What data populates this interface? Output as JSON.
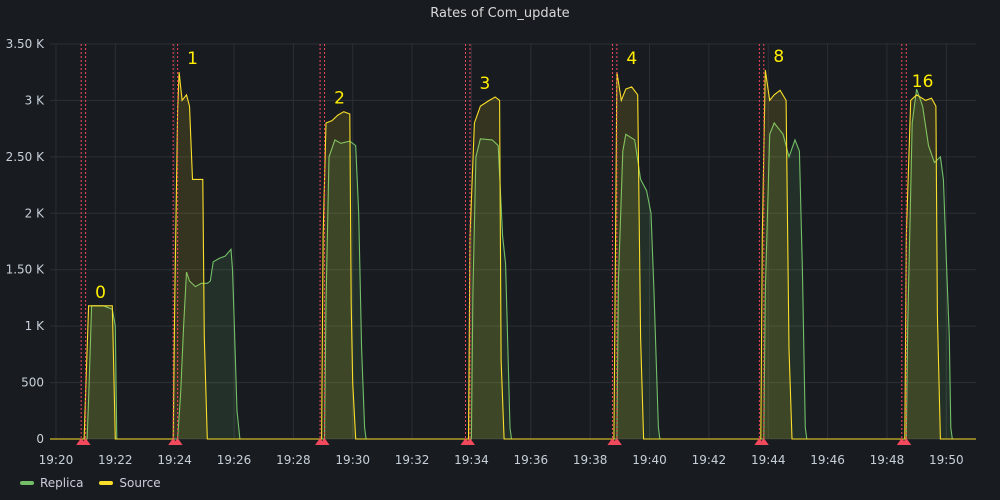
{
  "panel": {
    "title": "Rates of Com_update"
  },
  "colors": {
    "background": "#181b1f",
    "grid": "#2c3035",
    "annotation": "#f2495c",
    "replica": "#73bf69",
    "source": "#fade2a",
    "label": "#ffee00"
  },
  "chart_data": {
    "type": "area",
    "title": "Rates of Com_update",
    "xlabel": "",
    "ylabel": "",
    "x_ticks": [
      "19:20",
      "19:22",
      "19:24",
      "19:26",
      "19:28",
      "19:30",
      "19:32",
      "19:34",
      "19:36",
      "19:38",
      "19:40",
      "19:42",
      "19:44",
      "19:46",
      "19:48",
      "19:50"
    ],
    "y_ticks": [
      "0",
      "500",
      "1 K",
      "1.50 K",
      "2 K",
      "2.50 K",
      "3 K",
      "3.50 K"
    ],
    "y_tick_values": [
      0,
      500,
      1000,
      1500,
      2000,
      2500,
      3000,
      3500
    ],
    "ylim": [
      0,
      3500
    ],
    "xlim_minutes": [
      19.8,
      51.0
    ],
    "grid": true,
    "legend_placement": "bottom-left",
    "x_unit": "minutes past 19:00",
    "annotations": [
      {
        "label": "0",
        "start": 20.85,
        "end": 21.0
      },
      {
        "label": "1",
        "start": 23.95,
        "end": 24.1
      },
      {
        "label": "2",
        "start": 28.9,
        "end": 29.05
      },
      {
        "label": "3",
        "start": 33.8,
        "end": 33.95
      },
      {
        "label": "4",
        "start": 38.75,
        "end": 38.9
      },
      {
        "label": "8",
        "start": 43.7,
        "end": 43.85
      },
      {
        "label": "16",
        "start": 48.5,
        "end": 48.65
      }
    ],
    "series": [
      {
        "name": "Replica",
        "color": "#73bf69",
        "points": [
          [
            19.8,
            0
          ],
          [
            21.05,
            0
          ],
          [
            21.1,
            350
          ],
          [
            21.2,
            1180
          ],
          [
            21.6,
            1180
          ],
          [
            21.9,
            1150
          ],
          [
            22.0,
            1000
          ],
          [
            22.05,
            0
          ],
          [
            24.1,
            0
          ],
          [
            24.2,
            400
          ],
          [
            24.3,
            1000
          ],
          [
            24.4,
            1480
          ],
          [
            24.5,
            1400
          ],
          [
            24.7,
            1350
          ],
          [
            24.9,
            1380
          ],
          [
            25.1,
            1380
          ],
          [
            25.2,
            1400
          ],
          [
            25.3,
            1570
          ],
          [
            25.5,
            1600
          ],
          [
            25.7,
            1620
          ],
          [
            25.9,
            1680
          ],
          [
            25.95,
            1500
          ],
          [
            26.0,
            1100
          ],
          [
            26.1,
            250
          ],
          [
            26.2,
            0
          ],
          [
            29.05,
            0
          ],
          [
            29.1,
            1200
          ],
          [
            29.2,
            2500
          ],
          [
            29.4,
            2650
          ],
          [
            29.6,
            2620
          ],
          [
            29.9,
            2640
          ],
          [
            30.1,
            2600
          ],
          [
            30.2,
            2000
          ],
          [
            30.3,
            800
          ],
          [
            30.4,
            100
          ],
          [
            30.45,
            0
          ],
          [
            34.0,
            0
          ],
          [
            34.05,
            1300
          ],
          [
            34.15,
            2500
          ],
          [
            34.3,
            2660
          ],
          [
            34.7,
            2650
          ],
          [
            34.9,
            2600
          ],
          [
            35.05,
            1800
          ],
          [
            35.15,
            1550
          ],
          [
            35.3,
            100
          ],
          [
            35.35,
            0
          ],
          [
            38.9,
            0
          ],
          [
            38.95,
            1400
          ],
          [
            39.1,
            2550
          ],
          [
            39.2,
            2700
          ],
          [
            39.5,
            2650
          ],
          [
            39.7,
            2300
          ],
          [
            39.9,
            2200
          ],
          [
            40.05,
            2000
          ],
          [
            40.15,
            1300
          ],
          [
            40.3,
            100
          ],
          [
            40.35,
            0
          ],
          [
            43.85,
            0
          ],
          [
            43.9,
            1300
          ],
          [
            44.05,
            2700
          ],
          [
            44.2,
            2800
          ],
          [
            44.5,
            2700
          ],
          [
            44.7,
            2500
          ],
          [
            44.9,
            2650
          ],
          [
            45.05,
            2550
          ],
          [
            45.15,
            1500
          ],
          [
            45.25,
            100
          ],
          [
            45.3,
            0
          ],
          [
            48.65,
            0
          ],
          [
            48.7,
            1000
          ],
          [
            48.85,
            2800
          ],
          [
            49.0,
            3100
          ],
          [
            49.2,
            2950
          ],
          [
            49.4,
            2600
          ],
          [
            49.6,
            2450
          ],
          [
            49.8,
            2500
          ],
          [
            49.9,
            2300
          ],
          [
            50.0,
            1600
          ],
          [
            50.1,
            900
          ],
          [
            50.15,
            100
          ],
          [
            50.2,
            0
          ],
          [
            51.0,
            0
          ]
        ]
      },
      {
        "name": "Source",
        "color": "#fade2a",
        "points": [
          [
            19.8,
            0
          ],
          [
            20.95,
            0
          ],
          [
            21.0,
            400
          ],
          [
            21.1,
            1180
          ],
          [
            21.9,
            1180
          ],
          [
            21.95,
            600
          ],
          [
            22.0,
            0
          ],
          [
            23.95,
            0
          ],
          [
            24.0,
            1200
          ],
          [
            24.1,
            2900
          ],
          [
            24.15,
            3250
          ],
          [
            24.25,
            3000
          ],
          [
            24.4,
            3050
          ],
          [
            24.5,
            2950
          ],
          [
            24.6,
            2300
          ],
          [
            24.95,
            2300
          ],
          [
            25.0,
            900
          ],
          [
            25.1,
            0
          ],
          [
            28.95,
            0
          ],
          [
            29.0,
            1800
          ],
          [
            29.1,
            2800
          ],
          [
            29.3,
            2820
          ],
          [
            29.5,
            2870
          ],
          [
            29.7,
            2900
          ],
          [
            29.9,
            2880
          ],
          [
            29.95,
            1200
          ],
          [
            30.0,
            500
          ],
          [
            30.1,
            0
          ],
          [
            33.9,
            0
          ],
          [
            33.95,
            1800
          ],
          [
            34.1,
            2800
          ],
          [
            34.3,
            2950
          ],
          [
            34.6,
            3000
          ],
          [
            34.8,
            3030
          ],
          [
            34.95,
            3000
          ],
          [
            35.0,
            700
          ],
          [
            35.1,
            0
          ],
          [
            38.8,
            0
          ],
          [
            38.85,
            1600
          ],
          [
            38.9,
            3250
          ],
          [
            39.05,
            3000
          ],
          [
            39.2,
            3100
          ],
          [
            39.4,
            3120
          ],
          [
            39.6,
            3050
          ],
          [
            39.7,
            900
          ],
          [
            39.8,
            0
          ],
          [
            43.75,
            0
          ],
          [
            43.8,
            1800
          ],
          [
            43.9,
            3270
          ],
          [
            44.05,
            3000
          ],
          [
            44.2,
            3050
          ],
          [
            44.4,
            3090
          ],
          [
            44.6,
            3000
          ],
          [
            44.7,
            800
          ],
          [
            44.8,
            0
          ],
          [
            48.6,
            0
          ],
          [
            48.65,
            1800
          ],
          [
            48.8,
            3000
          ],
          [
            49.0,
            3050
          ],
          [
            49.3,
            3000
          ],
          [
            49.5,
            3020
          ],
          [
            49.65,
            2950
          ],
          [
            49.7,
            1100
          ],
          [
            49.8,
            0
          ],
          [
            51.0,
            0
          ]
        ]
      }
    ]
  },
  "legend": {
    "items": [
      {
        "name": "Replica",
        "color": "#73bf69"
      },
      {
        "name": "Source",
        "color": "#fade2a"
      }
    ]
  }
}
